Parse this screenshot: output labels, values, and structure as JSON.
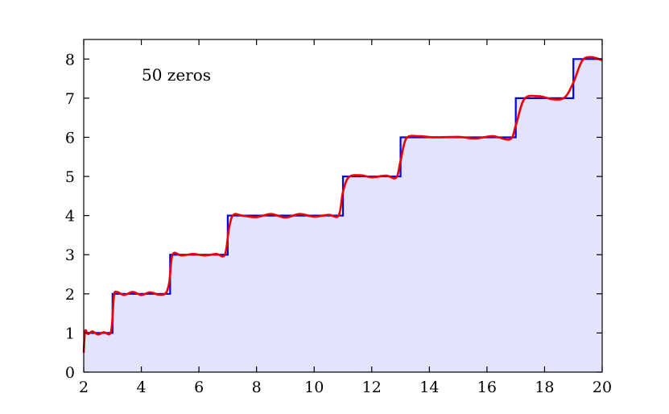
{
  "chart_data": {
    "type": "line",
    "title": "",
    "xlabel": "",
    "ylabel": "",
    "annotation": "50 zeros",
    "xlim": [
      2,
      20
    ],
    "ylim": [
      0,
      8.5
    ],
    "x_ticks": [
      2,
      4,
      6,
      8,
      10,
      12,
      14,
      16,
      18,
      20
    ],
    "y_ticks": [
      0,
      1,
      2,
      3,
      4,
      5,
      6,
      7,
      8
    ],
    "grid": false,
    "legend": "none",
    "colors": {
      "step": "#0000dd",
      "approximation": "#ee0000",
      "fill": "#e3e3fb"
    },
    "series": [
      {
        "kind": "step",
        "x": [
          2,
          3,
          5,
          7,
          11,
          13,
          17,
          19,
          20
        ],
        "y": [
          1,
          2,
          3,
          4,
          5,
          6,
          7,
          8,
          8
        ]
      },
      {
        "kind": "smooth",
        "x": [
          2.0,
          2.05,
          2.15,
          2.3,
          2.5,
          2.7,
          2.9,
          2.98,
          3.05,
          3.15,
          3.4,
          3.7,
          4.0,
          4.3,
          4.6,
          4.85,
          4.97,
          5.05,
          5.15,
          5.4,
          5.8,
          6.2,
          6.6,
          6.9,
          7.05,
          7.2,
          7.5,
          8.0,
          8.5,
          9.0,
          9.5,
          10.0,
          10.5,
          10.85,
          11.0,
          11.2,
          11.6,
          12.0,
          12.5,
          12.85,
          13.0,
          13.2,
          13.6,
          14.2,
          15.0,
          15.6,
          16.2,
          16.8,
          17.0,
          17.3,
          17.8,
          18.3,
          18.7,
          19.0,
          19.3,
          19.6,
          20.0
        ],
        "y": [
          0.5,
          1.05,
          0.97,
          1.04,
          0.96,
          1.02,
          0.97,
          1.2,
          1.95,
          2.05,
          1.97,
          2.05,
          1.97,
          2.04,
          1.98,
          2.02,
          2.3,
          2.9,
          3.05,
          2.98,
          3.02,
          2.98,
          3.02,
          3.0,
          3.7,
          4.02,
          4.0,
          3.96,
          4.04,
          3.95,
          4.04,
          3.97,
          4.02,
          4.0,
          4.6,
          4.98,
          5.03,
          4.98,
          5.02,
          4.97,
          5.4,
          5.97,
          6.03,
          6.0,
          6.01,
          5.97,
          6.03,
          5.95,
          6.3,
          6.98,
          7.05,
          6.97,
          7.02,
          7.4,
          7.95,
          8.05,
          7.97
        ]
      }
    ]
  }
}
